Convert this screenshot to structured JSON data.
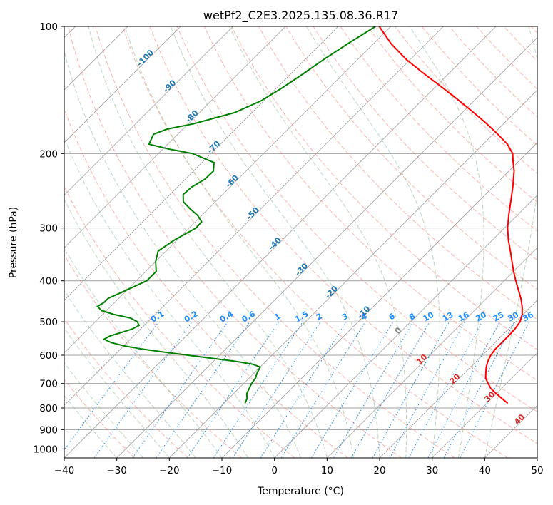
{
  "chart_data": {
    "type": "line",
    "subtype": "skew-t log-p",
    "title": "wetPf2_C2E3.2025.135.08.36.R17",
    "xlabel": "Temperature (°C)",
    "ylabel": "Pressure (hPa)",
    "xlim": [
      -40,
      50
    ],
    "ylim": [
      1050,
      100
    ],
    "y_scale": "log",
    "grid": true,
    "x_ticks": [
      -40,
      -30,
      -20,
      -10,
      0,
      10,
      20,
      30,
      40,
      50
    ],
    "y_ticks": [
      100,
      200,
      300,
      400,
      500,
      600,
      700,
      800,
      900,
      1000
    ],
    "series": [
      {
        "color": "#ff0000",
        "role": "temperature",
        "points": [
          [
            780,
            34.0
          ],
          [
            760,
            32.0
          ],
          [
            740,
            30.0
          ],
          [
            720,
            28.0
          ],
          [
            700,
            26.5
          ],
          [
            680,
            25.0
          ],
          [
            660,
            24.0
          ],
          [
            640,
            23.0
          ],
          [
            620,
            22.2
          ],
          [
            600,
            21.6
          ],
          [
            580,
            21.3
          ],
          [
            560,
            21.3
          ],
          [
            540,
            21.3
          ],
          [
            520,
            21.2
          ],
          [
            500,
            20.8
          ],
          [
            480,
            19.8
          ],
          [
            460,
            18.3
          ],
          [
            440,
            16.5
          ],
          [
            420,
            14.4
          ],
          [
            400,
            12.2
          ],
          [
            380,
            10.0
          ],
          [
            360,
            7.8
          ],
          [
            340,
            5.5
          ],
          [
            320,
            3.0
          ],
          [
            300,
            0.6
          ],
          [
            280,
            -1.6
          ],
          [
            260,
            -3.8
          ],
          [
            240,
            -6.2
          ],
          [
            220,
            -9.0
          ],
          [
            210,
            -10.8
          ],
          [
            200,
            -12.6
          ],
          [
            190,
            -15.4
          ],
          [
            180,
            -19.1
          ],
          [
            170,
            -23.2
          ],
          [
            160,
            -27.8
          ],
          [
            150,
            -32.8
          ],
          [
            140,
            -38.3
          ],
          [
            130,
            -44.3
          ],
          [
            120,
            -50.6
          ],
          [
            110,
            -56.6
          ],
          [
            100,
            -62.2
          ]
        ]
      },
      {
        "color": "#008000",
        "role": "dewpoint",
        "points": [
          [
            780,
            -16.0
          ],
          [
            760,
            -16.5
          ],
          [
            740,
            -17.5
          ],
          [
            720,
            -18.0
          ],
          [
            700,
            -18.5
          ],
          [
            680,
            -18.8
          ],
          [
            660,
            -19.5
          ],
          [
            640,
            -20.0
          ],
          [
            630,
            -22.0
          ],
          [
            620,
            -26.0
          ],
          [
            610,
            -31.0
          ],
          [
            600,
            -36.0
          ],
          [
            590,
            -41.0
          ],
          [
            580,
            -46.0
          ],
          [
            570,
            -50.0
          ],
          [
            560,
            -53.0
          ],
          [
            550,
            -55.0
          ],
          [
            540,
            -54.5
          ],
          [
            530,
            -53.0
          ],
          [
            520,
            -51.6
          ],
          [
            510,
            -51.0
          ],
          [
            500,
            -52.0
          ],
          [
            490,
            -54.0
          ],
          [
            480,
            -58.0
          ],
          [
            470,
            -61.0
          ],
          [
            460,
            -62.5
          ],
          [
            450,
            -62.0
          ],
          [
            440,
            -62.0
          ],
          [
            430,
            -61.0
          ],
          [
            420,
            -60.0
          ],
          [
            400,
            -58.0
          ],
          [
            380,
            -58.0
          ],
          [
            360,
            -60.0
          ],
          [
            340,
            -61.5
          ],
          [
            320,
            -60.5
          ],
          [
            300,
            -58.7
          ],
          [
            290,
            -58.8
          ],
          [
            280,
            -60.8
          ],
          [
            270,
            -63.5
          ],
          [
            260,
            -66.1
          ],
          [
            250,
            -67.5
          ],
          [
            240,
            -67.3
          ],
          [
            230,
            -66.3
          ],
          [
            220,
            -66.2
          ],
          [
            210,
            -67.7
          ],
          [
            200,
            -73.5
          ],
          [
            195,
            -79.0
          ],
          [
            190,
            -83.6
          ],
          [
            180,
            -84.6
          ],
          [
            175,
            -83.0
          ],
          [
            170,
            -79.0
          ],
          [
            160,
            -73.3
          ],
          [
            150,
            -70.5
          ],
          [
            140,
            -69.0
          ],
          [
            130,
            -67.7
          ],
          [
            120,
            -66.5
          ],
          [
            110,
            -64.9
          ],
          [
            100,
            -62.9
          ]
        ]
      }
    ],
    "annotations": {
      "dry_adiabat_labels": [
        "-100",
        "-90",
        "-80",
        "-70",
        "-60",
        "-50",
        "-40",
        "-30",
        "-20",
        "-10",
        "0",
        "10",
        "20",
        "30",
        "40"
      ],
      "mixing_ratio_labels": [
        "0.1",
        "0.2",
        "0.4",
        "0.6",
        "1",
        "1.5",
        "2",
        "3",
        "4",
        "6",
        "8",
        "10",
        "13",
        "16",
        "20",
        "25",
        "30",
        "36"
      ]
    },
    "colors": {
      "temperature": "#ff0000",
      "dewpoint": "#008000",
      "isotherm": "#a0a0a0",
      "dry_adiabat": "#fa8072",
      "moist_adiabat": "#8fbc8f",
      "mixing_ratio": "#1e90ff",
      "cold_label": "#1f77b4",
      "warm_label": "#d62728"
    }
  }
}
